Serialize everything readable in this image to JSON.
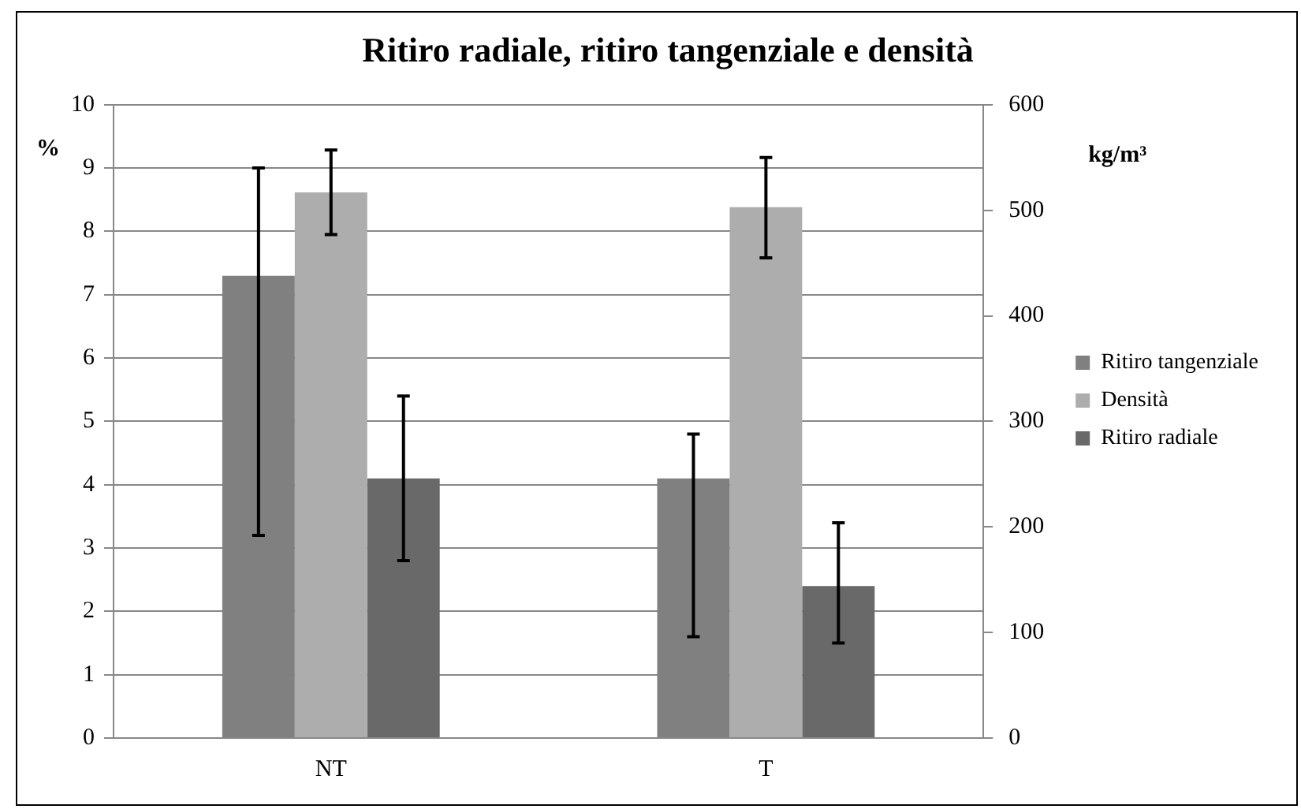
{
  "chart_data": {
    "type": "bar",
    "title": "Ritiro radiale, ritiro tangenziale e densità",
    "categories": [
      "NT",
      "T"
    ],
    "series": [
      {
        "name": "Ritiro tangenziale",
        "color": "#808080",
        "values": [
          7.3,
          4.1
        ],
        "errors": [
          [
            3.2,
            9.0
          ],
          [
            1.6,
            4.8
          ]
        ]
      },
      {
        "name": "Densità",
        "color": "#adadad",
        "values": [
          517,
          503
        ],
        "axis": "y2",
        "errors": [
          [
            477,
            557
          ],
          [
            455,
            550
          ]
        ]
      },
      {
        "name": "Ritiro radiale",
        "color": "#696969",
        "values": [
          4.1,
          2.4
        ],
        "errors": [
          [
            2.8,
            5.4
          ],
          [
            1.5,
            3.4
          ]
        ]
      }
    ],
    "ylabel": "%",
    "y2label": "kg/m³",
    "ylim": [
      0,
      10
    ],
    "yticks": [
      0,
      1,
      2,
      3,
      4,
      5,
      6,
      7,
      8,
      9,
      10
    ],
    "y2lim": [
      0,
      600
    ],
    "y2ticks": [
      0,
      100,
      200,
      300,
      400,
      500,
      600
    ],
    "grid": "y",
    "legend": "right"
  }
}
